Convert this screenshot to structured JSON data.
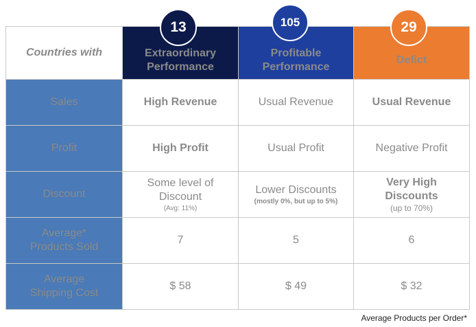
{
  "header": {
    "corner_label": "Countries with",
    "columns": [
      {
        "count": "13",
        "line1": "Extraordinary",
        "line2": "Performance",
        "color": "#0c1a4a"
      },
      {
        "count": "105",
        "line1": "Profitable",
        "line2": "Performance",
        "color": "#1f3f9f"
      },
      {
        "count": "29",
        "line1": "Defict",
        "line2": "",
        "color": "#ec7c30"
      }
    ]
  },
  "rows": {
    "sales": {
      "label": "Sales",
      "ext": "High Revenue",
      "pro": "Usual Revenue",
      "def": "Usual Revenue"
    },
    "profit": {
      "label": "Profit",
      "ext": "High Profit",
      "pro": "Usual Profit",
      "def": "Negative Profit"
    },
    "discount": {
      "label": "Discount",
      "ext_line1": "Some level of",
      "ext_line2": "Discount",
      "ext_note": "(Avg: 11%)",
      "pro_main": "Lower Discounts",
      "pro_note": "(mostly 0%, but up to 5%)",
      "def_line1": "Very High",
      "def_line2": "Discounts",
      "def_note": "(up to 70%)"
    },
    "products": {
      "label_line1": "Average*",
      "label_line2": "Products Sold",
      "ext": "7",
      "pro": "5",
      "def": "6"
    },
    "shipping": {
      "label_line1": "Average",
      "label_line2": "Shipping Cost",
      "ext": "$ 58",
      "pro": "$ 49",
      "def": "$ 32"
    }
  },
  "footnote": "Average Products per Order*",
  "colors": {
    "row_label_bg": "#4a7ab7",
    "positive": "#19a24a",
    "negative": "#c00000",
    "neutral": "#8a8a8a"
  }
}
